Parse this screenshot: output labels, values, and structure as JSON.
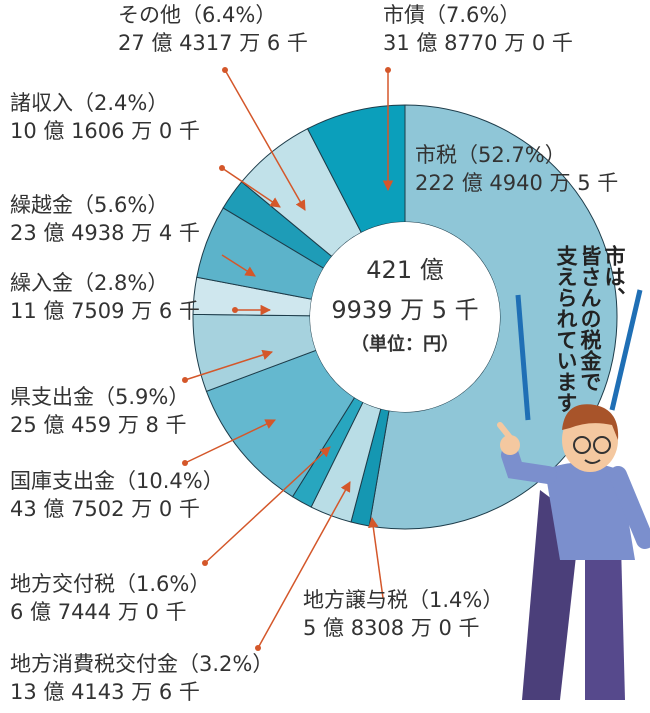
{
  "chart_data": {
    "type": "pie",
    "categories": [
      "市税",
      "地方譲与税",
      "地方消費税交付金",
      "地方交付税",
      "国庫支出金",
      "県支出金",
      "繰入金",
      "繰越金",
      "諸収入",
      "その他",
      "市債"
    ],
    "values": [
      52.7,
      1.4,
      3.2,
      1.6,
      10.4,
      5.9,
      2.8,
      5.6,
      2.4,
      6.4,
      7.6
    ],
    "value_labels": [
      "（52.7%）",
      "（1.4%）",
      "（3.2%）",
      "（1.6%）",
      "（10.4%）",
      "（5.9%）",
      "（2.8%）",
      "（5.6%）",
      "（2.4%）",
      "（6.4%）",
      "（7.6%）"
    ],
    "amounts": [
      "222 億 4940 万 5 千",
      "5 億 8308 万 0 千",
      "13 億 4143 万 6 千",
      "6 億 7444 万 0 千",
      "43 億 7502 万 0 千",
      "25 億 459 万 8 千",
      "11 億 7509 万 6 千",
      "23 億 4938 万 4 千",
      "10 億 1606 万 0 千",
      "27 億 4317 万 6 千",
      "31 億 8770 万 0 千"
    ],
    "colors": [
      "#8fc6d7",
      "#1597b2",
      "#b9dde6",
      "#28a6bf",
      "#64b8cf",
      "#a6d2de",
      "#cfe7ee",
      "#5cb3ca",
      "#1e9cb7",
      "#c1e1e9",
      "#0b9fbb"
    ],
    "total": [
      "421 億",
      "9939 万 5 千",
      "（単位：円）"
    ],
    "speech": [
      "市は、",
      "皆さんの税金で",
      "支えられています"
    ]
  }
}
